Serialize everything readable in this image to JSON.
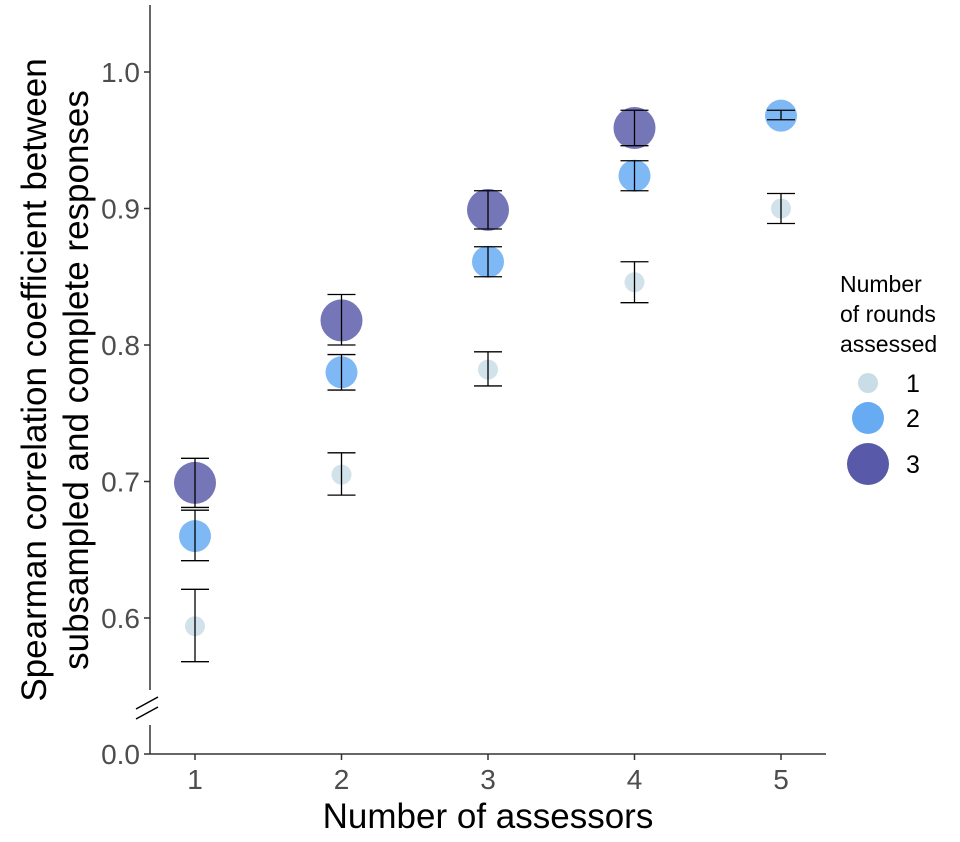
{
  "chart_data": {
    "type": "scatter",
    "title": "",
    "xlabel": "Number of assessors",
    "ylabel_lines": [
      "Spearman correlation coefficient between",
      "subsampled and complete responses"
    ],
    "x_ticks": [
      "1",
      "2",
      "3",
      "4",
      "5"
    ],
    "y_ticks": [
      {
        "value": 0.6,
        "label": "0.6"
      },
      {
        "value": 0.7,
        "label": "0.7"
      },
      {
        "value": 0.8,
        "label": "0.8"
      },
      {
        "value": 0.9,
        "label": "0.9"
      },
      {
        "value": 1.0,
        "label": "1.0"
      }
    ],
    "y_break_label": "0.0",
    "ylim": [
      0.55,
      1.05
    ],
    "xlim": [
      0.55,
      5.3
    ],
    "grid": false,
    "legend": {
      "title_lines": [
        "Number",
        "of rounds",
        "assessed"
      ],
      "position": "right"
    },
    "series": [
      {
        "name": "1",
        "color": "#c6dbe6",
        "opacity": 0.8,
        "points": [
          {
            "x": 1,
            "y": 0.594,
            "ymin": 0.568,
            "ymax": 0.621
          },
          {
            "x": 2,
            "y": 0.705,
            "ymin": 0.69,
            "ymax": 0.721
          },
          {
            "x": 3,
            "y": 0.782,
            "ymin": 0.77,
            "ymax": 0.795
          },
          {
            "x": 4,
            "y": 0.846,
            "ymin": 0.831,
            "ymax": 0.861
          },
          {
            "x": 5,
            "y": 0.9,
            "ymin": 0.889,
            "ymax": 0.911
          }
        ]
      },
      {
        "name": "2",
        "color": "#5fa7f2",
        "opacity": 0.8,
        "points": [
          {
            "x": 1,
            "y": 0.66,
            "ymin": 0.642,
            "ymax": 0.679
          },
          {
            "x": 2,
            "y": 0.78,
            "ymin": 0.767,
            "ymax": 0.793
          },
          {
            "x": 3,
            "y": 0.861,
            "ymin": 0.85,
            "ymax": 0.872
          },
          {
            "x": 4,
            "y": 0.924,
            "ymin": 0.913,
            "ymax": 0.935
          },
          {
            "x": 5,
            "y": 0.968,
            "ymin": 0.965,
            "ymax": 0.972
          }
        ]
      },
      {
        "name": "3",
        "color": "#3b3c9a",
        "opacity": 0.7,
        "points": [
          {
            "x": 1,
            "y": 0.699,
            "ymin": 0.681,
            "ymax": 0.717
          },
          {
            "x": 2,
            "y": 0.818,
            "ymin": 0.8,
            "ymax": 0.837
          },
          {
            "x": 3,
            "y": 0.899,
            "ymin": 0.885,
            "ymax": 0.913
          },
          {
            "x": 4,
            "y": 0.959,
            "ymin": 0.946,
            "ymax": 0.972
          }
        ]
      }
    ]
  }
}
